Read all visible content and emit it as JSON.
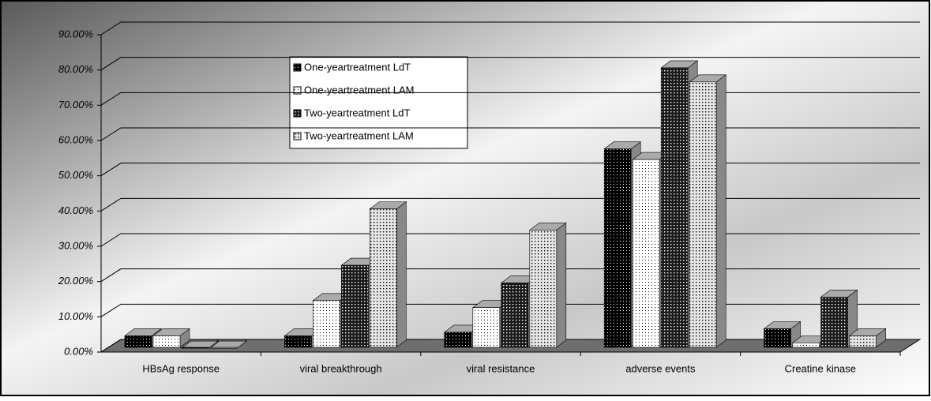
{
  "chart_data": {
    "type": "bar3d",
    "categories": [
      "HBsAg response",
      "viral breakthrough",
      "viral resistance",
      "adverse events",
      "Creatine kinase"
    ],
    "series": [
      {
        "name": "One-yeartreatment LdT",
        "color": "#000000",
        "values": [
          4,
          4,
          5,
          57,
          6
        ]
      },
      {
        "name": "One-yeartreatment LAM",
        "color": "#ffffff",
        "values": [
          4,
          14,
          12,
          54,
          2
        ]
      },
      {
        "name": "Two-yeartreatment LdT",
        "color": "#1a1a1a",
        "values": [
          0.5,
          24,
          19,
          80,
          15
        ]
      },
      {
        "name": "Two-yeartreatment LAM",
        "color": "#e6e6e6",
        "values": [
          0.5,
          40,
          34,
          76,
          4
        ]
      }
    ],
    "ylim": [
      0,
      90
    ],
    "yticks": [
      {
        "value": 0,
        "label": "0.00%"
      },
      {
        "value": 10,
        "label": "10.00%"
      },
      {
        "value": 20,
        "label": "20.00%"
      },
      {
        "value": 30,
        "label": "30.00%"
      },
      {
        "value": 40,
        "label": "40.00%"
      },
      {
        "value": 50,
        "label": "50.00%"
      },
      {
        "value": 60,
        "label": "60.00%"
      },
      {
        "value": 70,
        "label": "70.00%"
      },
      {
        "value": 80,
        "label": "80.00%"
      },
      {
        "value": 90,
        "label": "90.00%"
      }
    ],
    "grid": true
  }
}
